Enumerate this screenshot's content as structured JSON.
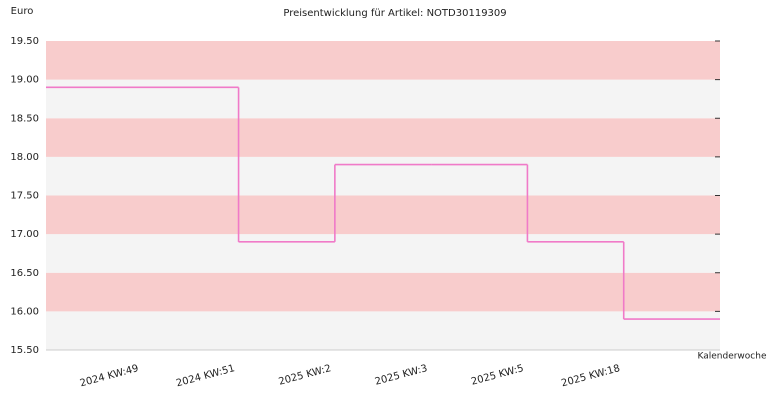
{
  "chart_data": {
    "type": "step",
    "title": "Preisentwicklung für Artikel: NOTD30119309",
    "y_label": "Euro",
    "x_label": "Kalenderwoche",
    "categories": [
      "2024 KW:49",
      "2024 KW:51",
      "2025 KW:2",
      "2025 KW:3",
      "2025 KW:5",
      "2025 KW:18"
    ],
    "values": [
      18.9,
      16.9,
      17.9,
      17.9,
      16.9,
      15.9
    ],
    "color": "#f07ac8",
    "band_colors": [
      "#f8cccc",
      "#f4f4f4"
    ],
    "ylim": [
      15.5,
      19.5
    ],
    "yticks": [
      {
        "value": 15.5,
        "label": "15.50"
      },
      {
        "value": 16,
        "label": "16.00"
      },
      {
        "value": 16.5,
        "label": "16.50"
      },
      {
        "value": 17,
        "label": "17.00"
      },
      {
        "value": 17.5,
        "label": "17.50"
      },
      {
        "value": 18,
        "label": "18.00"
      },
      {
        "value": 18.5,
        "label": "18.50"
      },
      {
        "value": 19,
        "label": "19.00"
      },
      {
        "value": 19.5,
        "label": "19.50"
      }
    ]
  }
}
